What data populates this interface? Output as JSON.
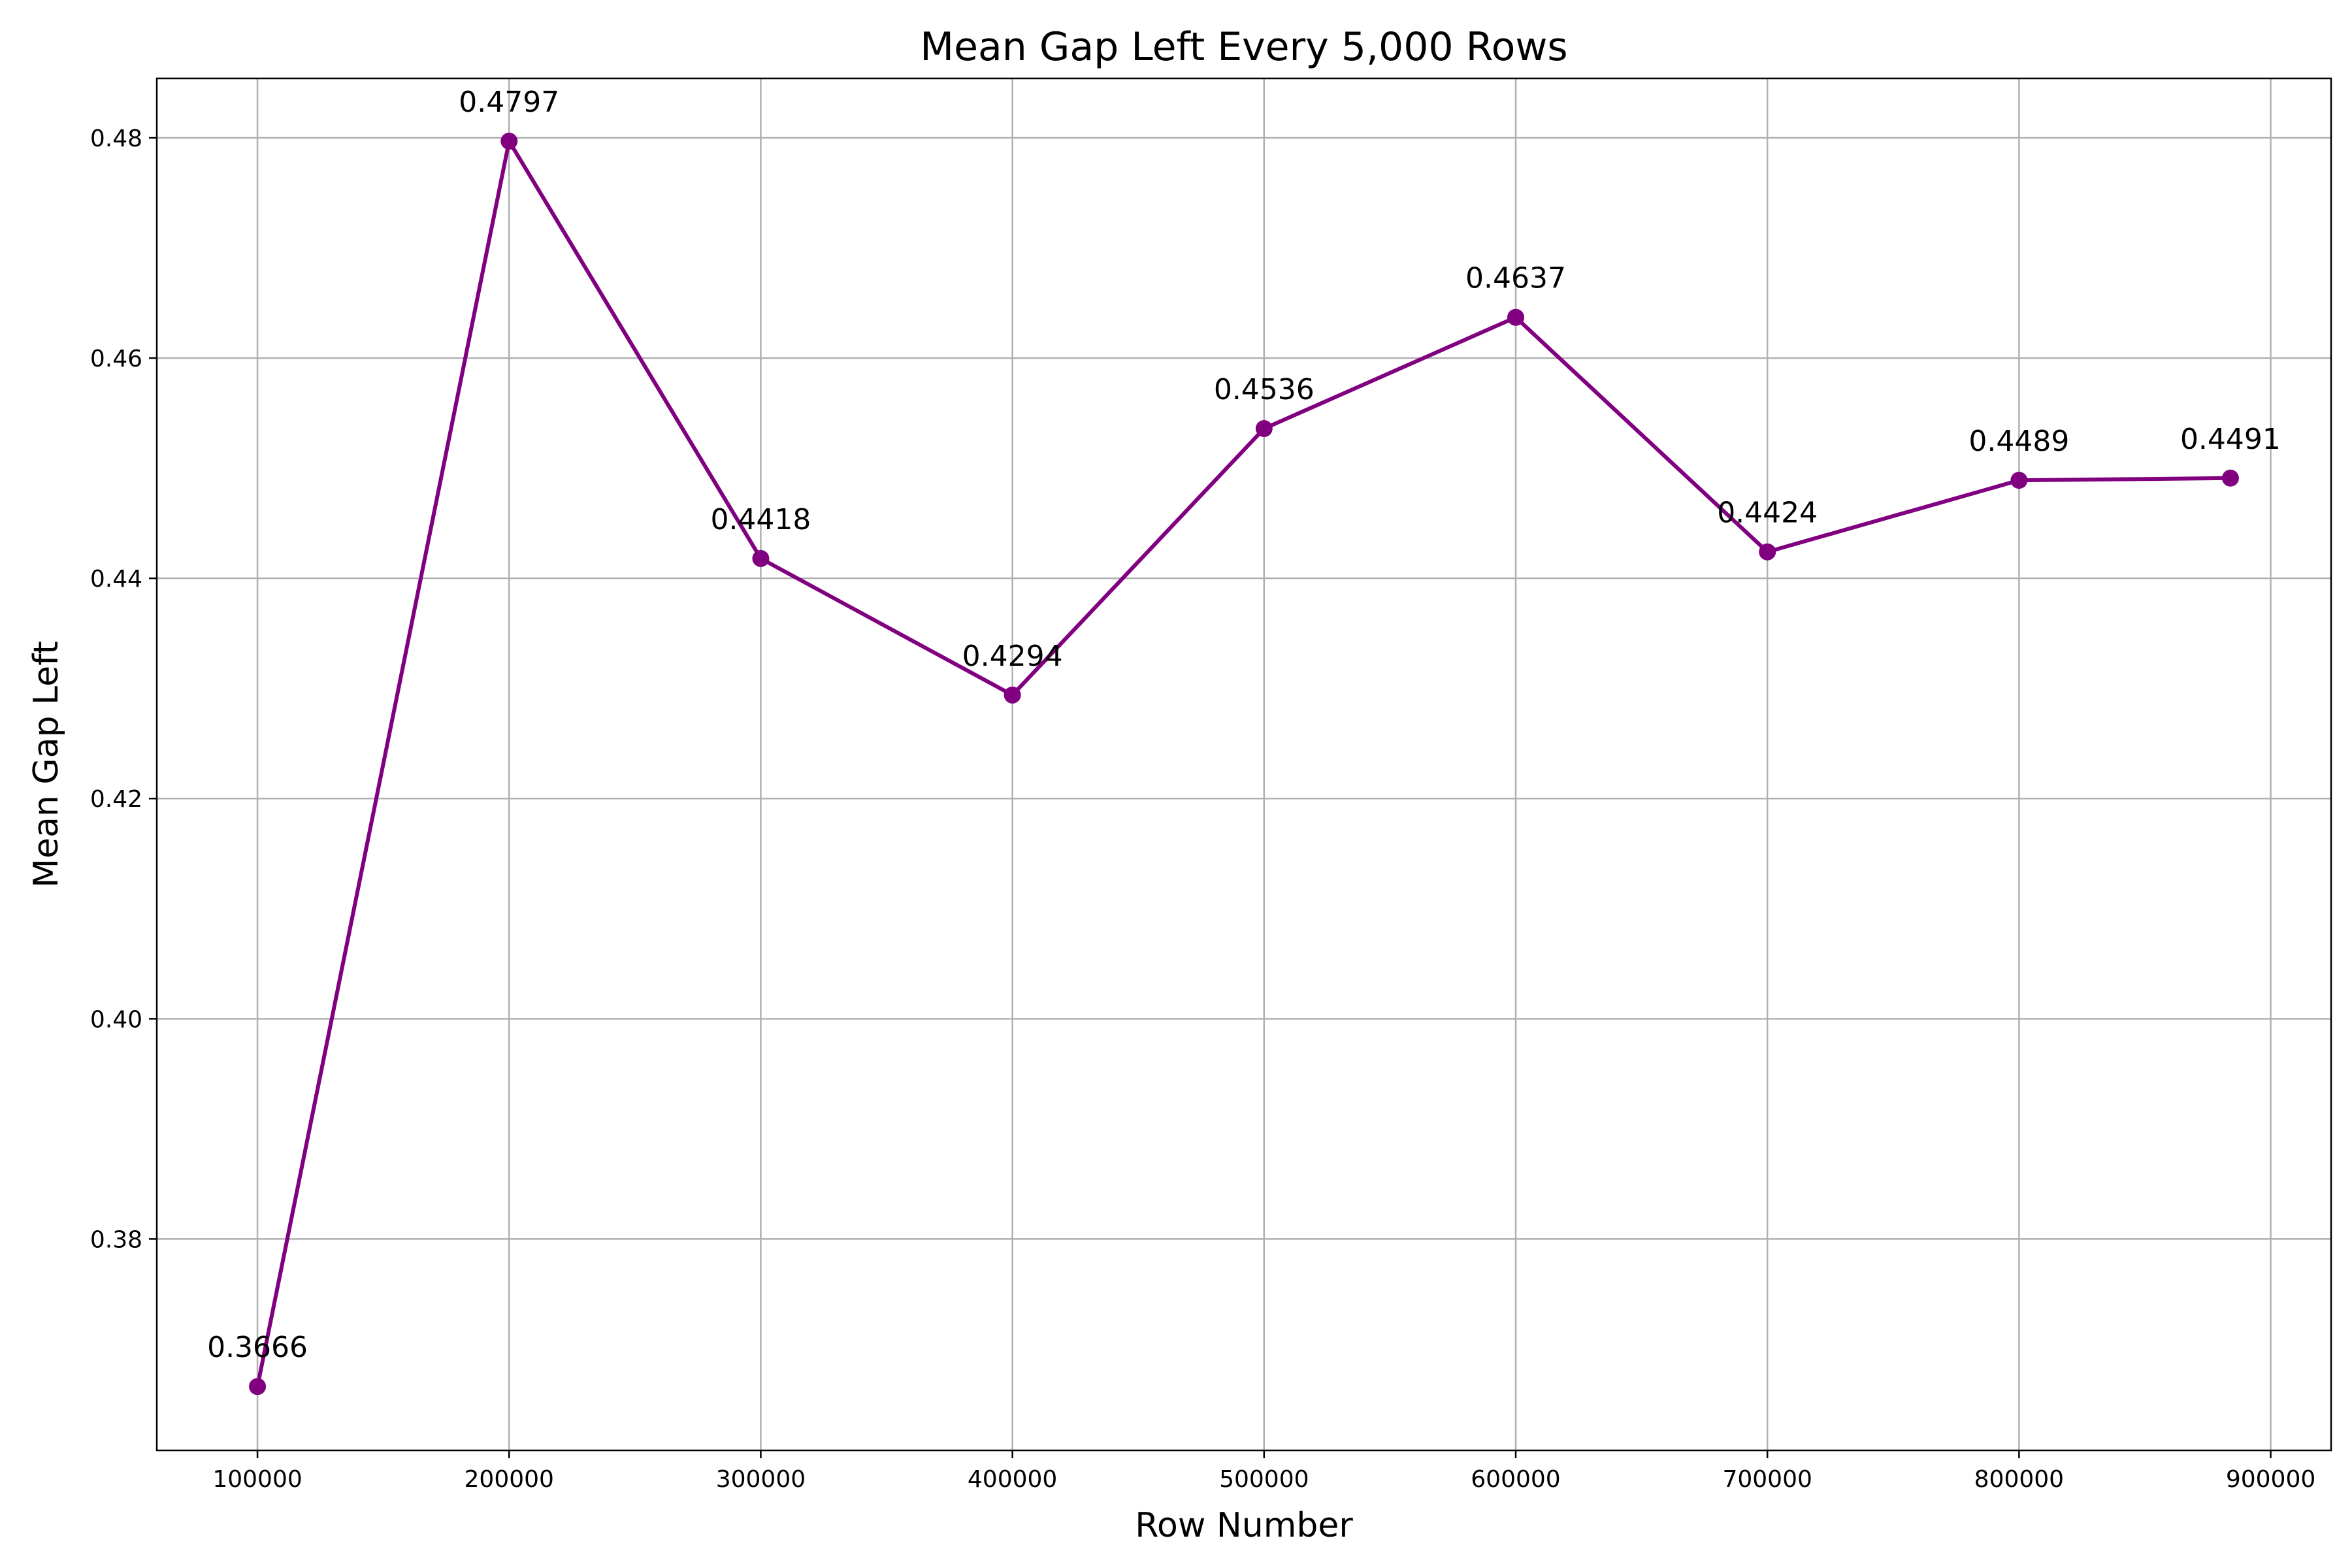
{
  "chart_data": {
    "type": "line",
    "title": "Mean Gap Left Every 5,000 Rows",
    "xlabel": "Row Number",
    "ylabel": "Mean Gap Left",
    "xlim": [
      60000,
      924000
    ],
    "ylim": [
      0.3608,
      0.4854
    ],
    "xticks": [
      100000,
      200000,
      300000,
      400000,
      500000,
      600000,
      700000,
      800000,
      900000
    ],
    "xtick_labels": [
      "100000",
      "200000",
      "300000",
      "400000",
      "500000",
      "600000",
      "700000",
      "800000",
      "900000"
    ],
    "yticks": [
      0.38,
      0.4,
      0.42,
      0.44,
      0.46,
      0.48
    ],
    "ytick_labels": [
      "0.38",
      "0.40",
      "0.42",
      "0.44",
      "0.46",
      "0.48"
    ],
    "grid": true,
    "series": [
      {
        "color": "#800080",
        "marker": "circle",
        "x": [
          100000,
          200000,
          300000,
          400000,
          500000,
          600000,
          700000,
          800000,
          884000
        ],
        "y": [
          0.3666,
          0.4797,
          0.4418,
          0.4294,
          0.4536,
          0.4637,
          0.4424,
          0.4489,
          0.4491
        ],
        "labels": [
          "0.3666",
          "0.4797",
          "0.4418",
          "0.4294",
          "0.4536",
          "0.4637",
          "0.4424",
          "0.4489",
          "0.4491"
        ]
      }
    ]
  }
}
